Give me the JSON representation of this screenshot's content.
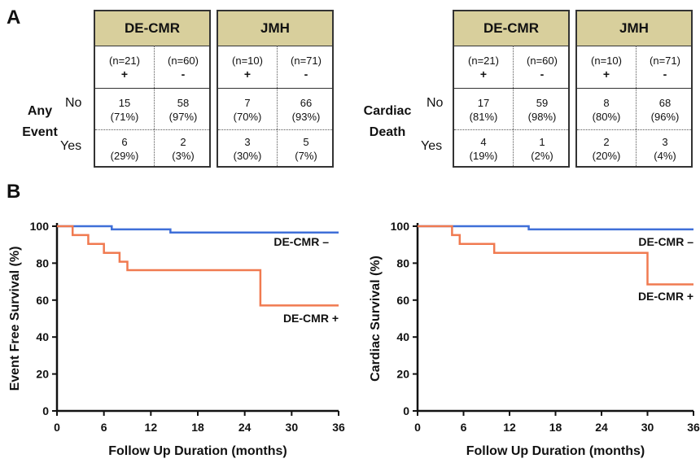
{
  "panel_a_letter": "A",
  "panel_b_letter": "B",
  "tables": [
    {
      "row_group_label_line1": "Any",
      "row_group_label_line2": "Event",
      "row_labels": [
        "No",
        "Yes"
      ],
      "groups": [
        {
          "name": "DE-CMR",
          "cols": [
            {
              "n": "(n=21)",
              "sign": "+",
              "no_count": "15",
              "no_pct": "(71%)",
              "yes_count": "6",
              "yes_pct": "(29%)"
            },
            {
              "n": "(n=60)",
              "sign": "-",
              "no_count": "58",
              "no_pct": "(97%)",
              "yes_count": "2",
              "yes_pct": "(3%)"
            }
          ]
        },
        {
          "name": "JMH",
          "cols": [
            {
              "n": "(n=10)",
              "sign": "+",
              "no_count": "7",
              "no_pct": "(70%)",
              "yes_count": "3",
              "yes_pct": "(30%)"
            },
            {
              "n": "(n=71)",
              "sign": "-",
              "no_count": "66",
              "no_pct": "(93%)",
              "yes_count": "5",
              "yes_pct": "(7%)"
            }
          ]
        }
      ]
    },
    {
      "row_group_label_line1": "Cardiac",
      "row_group_label_line2": "Death",
      "row_labels": [
        "No",
        "Yes"
      ],
      "groups": [
        {
          "name": "DE-CMR",
          "cols": [
            {
              "n": "(n=21)",
              "sign": "+",
              "no_count": "17",
              "no_pct": "(81%)",
              "yes_count": "4",
              "yes_pct": "(19%)"
            },
            {
              "n": "(n=60)",
              "sign": "-",
              "no_count": "59",
              "no_pct": "(98%)",
              "yes_count": "1",
              "yes_pct": "(2%)"
            }
          ]
        },
        {
          "name": "JMH",
          "cols": [
            {
              "n": "(n=10)",
              "sign": "+",
              "no_count": "8",
              "no_pct": "(80%)",
              "yes_count": "2",
              "yes_pct": "(20%)"
            },
            {
              "n": "(n=71)",
              "sign": "-",
              "no_count": "68",
              "no_pct": "(96%)",
              "yes_count": "3",
              "yes_pct": "(4%)"
            }
          ]
        }
      ]
    }
  ],
  "chart_data": [
    {
      "type": "line",
      "title": "",
      "xlabel": "Follow Up Duration (months)",
      "ylabel": "Event Free Survival (%)",
      "xlim": [
        0,
        36
      ],
      "ylim": [
        0,
        100
      ],
      "xticks": [
        "0",
        "6",
        "12",
        "18",
        "24",
        "30",
        "36"
      ],
      "yticks": [
        "0",
        "20",
        "40",
        "60",
        "80",
        "100"
      ],
      "step": true,
      "series": [
        {
          "name": "DE-CMR –",
          "color": "#3f6fd8",
          "x": [
            0,
            6,
            7,
            14,
            14.5,
            36
          ],
          "y": [
            100,
            100,
            98.3,
            98.3,
            96.6,
            96.6
          ]
        },
        {
          "name": "DE-CMR +",
          "color": "#f07a50",
          "x": [
            0,
            2,
            4,
            6,
            8,
            9,
            10,
            26,
            36
          ],
          "y": [
            100,
            95.2,
            90.4,
            85.6,
            80.8,
            76.2,
            76.2,
            57.1,
            57.1
          ]
        }
      ]
    },
    {
      "type": "line",
      "title": "",
      "xlabel": "Follow Up Duration (months)",
      "ylabel": "Cardiac Survival (%)",
      "xlim": [
        0,
        36
      ],
      "ylim": [
        0,
        100
      ],
      "xticks": [
        "0",
        "6",
        "12",
        "18",
        "24",
        "30",
        "36"
      ],
      "yticks": [
        "0",
        "20",
        "40",
        "60",
        "80",
        "100"
      ],
      "step": true,
      "series": [
        {
          "name": "DE-CMR –",
          "color": "#3f6fd8",
          "x": [
            0,
            14.5,
            36
          ],
          "y": [
            100,
            98.3,
            98.3
          ]
        },
        {
          "name": "DE-CMR +",
          "color": "#f07a50",
          "x": [
            0,
            4.5,
            5.5,
            10,
            30,
            36
          ],
          "y": [
            100,
            95.2,
            90.4,
            85.6,
            68.5,
            68.5
          ]
        }
      ]
    }
  ]
}
